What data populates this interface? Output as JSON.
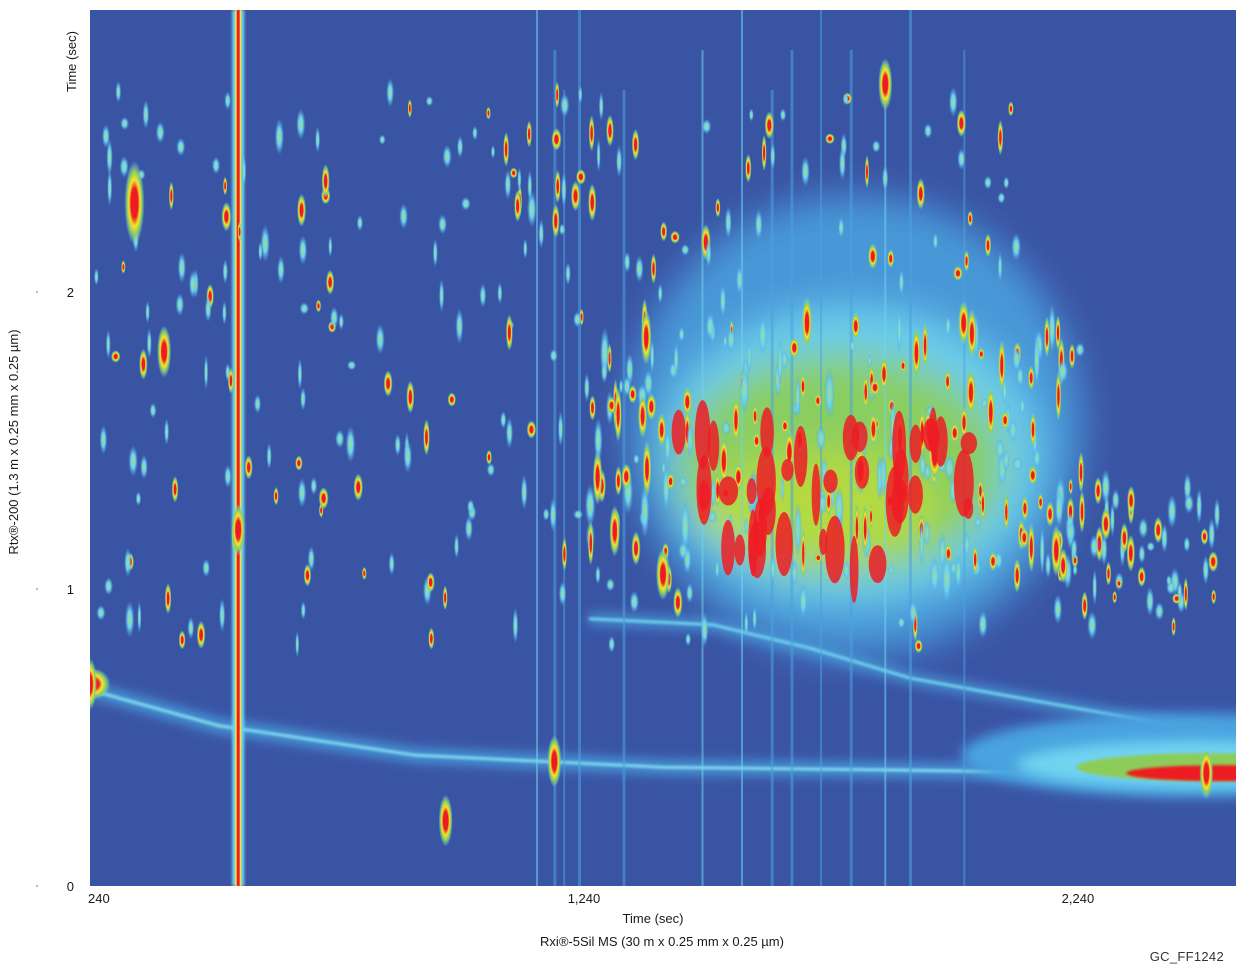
{
  "chart_data": {
    "type": "heatmap",
    "title": "",
    "x_axis": {
      "label": "Time (sec)",
      "column_label": "Rxi®-5Sil MS (30 m x 0.25 mm x 0.25 µm)",
      "ticks": [
        240,
        1240,
        2240
      ],
      "tick_labels": [
        "240",
        "1,240",
        "2,240"
      ],
      "range": [
        240,
        2560
      ]
    },
    "y_axis": {
      "label": "Time (sec)",
      "column_label": "Rtx®-200 (1.3 m x 0.25 mm x 0.25 µm)",
      "ticks": [
        0,
        1,
        2
      ],
      "tick_labels": [
        "0",
        "1",
        "2"
      ],
      "range": [
        0,
        2.95
      ]
    },
    "colorscale": [
      "#3a54a4",
      "#4aa3df",
      "#6fd3f0",
      "#8ccd5a",
      "#f5e52b",
      "#ed1c24"
    ],
    "background_color": "#3a54a4",
    "features": {
      "column_bleed_band": [
        [
          240,
          0.66
        ],
        [
          500,
          0.54
        ],
        [
          900,
          0.44
        ],
        [
          1400,
          0.4
        ],
        [
          1900,
          0.39
        ],
        [
          2300,
          0.38
        ],
        [
          2560,
          0.37
        ]
      ],
      "secondary_band": [
        [
          1250,
          0.9
        ],
        [
          1500,
          0.88
        ],
        [
          1700,
          0.8
        ],
        [
          1900,
          0.7
        ],
        [
          2100,
          0.64
        ],
        [
          2300,
          0.58
        ],
        [
          2560,
          0.5
        ]
      ],
      "hump_region": {
        "x": [
          1250,
          2250
        ],
        "y_center": 1.4
      },
      "vertical_streak_x": 540,
      "intense_peaks": [
        {
          "x": 240,
          "y": 0.68
        },
        {
          "x": 540,
          "y": 1.2
        },
        {
          "x": 330,
          "y": 2.3
        },
        {
          "x": 390,
          "y": 1.8
        },
        {
          "x": 1180,
          "y": 0.42
        },
        {
          "x": 960,
          "y": 0.22
        },
        {
          "x": 2500,
          "y": 0.38
        },
        {
          "x": 1400,
          "y": 1.05
        },
        {
          "x": 1600,
          "y": 1.25
        },
        {
          "x": 1800,
          "y": 1.4
        },
        {
          "x": 1950,
          "y": 1.45
        },
        {
          "x": 1850,
          "y": 2.7
        }
      ]
    }
  },
  "figure_code": "GC_FF1242"
}
